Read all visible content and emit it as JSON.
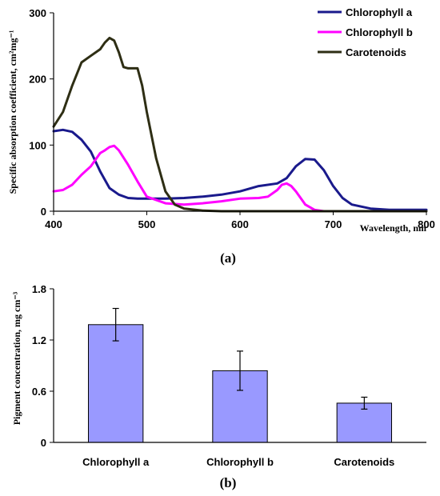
{
  "panel_labels": {
    "a": "(a)",
    "b": "(b)"
  },
  "colors": {
    "Chlorophyll a": "#1a1a8c",
    "Chlorophyll b": "#ff00ff",
    "Carotenoids": "#2e2e14",
    "bar_fill": "#9999ff",
    "bar_edge": "#000000"
  },
  "chart_data": [
    {
      "type": "line",
      "title": "",
      "xlabel": "Wavelength, nm",
      "ylabel": "Specific absorption coefficient, cm²mg⁻¹",
      "xlim": [
        400,
        800
      ],
      "ylim": [
        0,
        300
      ],
      "x_ticks": [
        400,
        500,
        600,
        700,
        800
      ],
      "y_ticks": [
        0,
        100,
        200,
        300
      ],
      "grid": false,
      "legend_position": "top-right",
      "series": [
        {
          "name": "Chlorophyll a",
          "x": [
            400,
            410,
            420,
            430,
            440,
            450,
            460,
            470,
            480,
            490,
            500,
            520,
            540,
            560,
            580,
            600,
            620,
            640,
            650,
            660,
            670,
            680,
            690,
            700,
            710,
            720,
            740,
            760,
            800
          ],
          "y": [
            121,
            123,
            120,
            108,
            90,
            60,
            35,
            25,
            20,
            19,
            19,
            19,
            20,
            22,
            25,
            30,
            38,
            42,
            50,
            68,
            79,
            78,
            62,
            38,
            20,
            10,
            4,
            2,
            2
          ]
        },
        {
          "name": "Chlorophyll b",
          "x": [
            400,
            410,
            420,
            430,
            440,
            450,
            455,
            460,
            465,
            470,
            480,
            490,
            500,
            520,
            540,
            560,
            580,
            600,
            620,
            630,
            640,
            645,
            650,
            655,
            660,
            670,
            680,
            690,
            700
          ],
          "y": [
            30,
            32,
            40,
            55,
            68,
            88,
            92,
            97,
            99,
            92,
            70,
            45,
            22,
            12,
            10,
            12,
            15,
            19,
            20,
            22,
            32,
            40,
            42,
            38,
            30,
            10,
            2,
            0,
            0
          ]
        },
        {
          "name": "Carotenoids",
          "x": [
            400,
            410,
            420,
            430,
            440,
            450,
            455,
            460,
            465,
            470,
            475,
            480,
            490,
            495,
            500,
            510,
            520,
            530,
            540,
            560,
            580,
            600,
            650,
            700,
            800
          ],
          "y": [
            128,
            150,
            190,
            225,
            235,
            245,
            255,
            262,
            258,
            240,
            218,
            216,
            216,
            190,
            150,
            80,
            30,
            10,
            4,
            1,
            0,
            0,
            0,
            0,
            0
          ]
        }
      ]
    },
    {
      "type": "bar",
      "title": "",
      "categories": [
        "Chlorophyll a",
        "Chlorophyll b",
        "Carotenoids"
      ],
      "values": [
        1.38,
        0.84,
        0.46
      ],
      "errors": [
        0.19,
        0.23,
        0.07
      ],
      "xlabel": "",
      "ylabel": "Pigment concentration, mg cm⁻³",
      "ylim": [
        0,
        1.8
      ],
      "y_ticks": [
        "0",
        "0.6",
        "1.2",
        "1.8"
      ],
      "grid": false
    }
  ]
}
